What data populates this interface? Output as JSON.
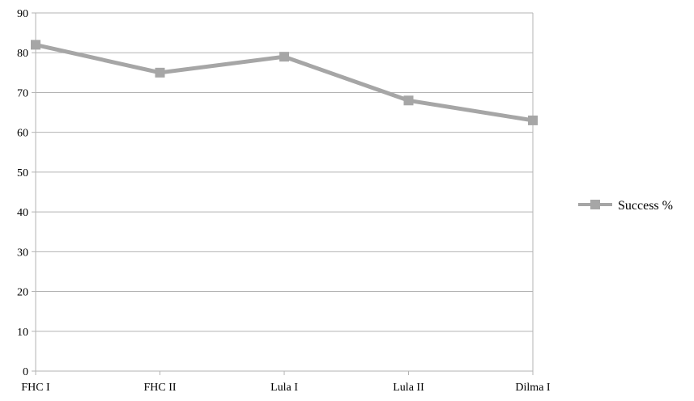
{
  "chart_data": {
    "type": "line",
    "categories": [
      "FHC I",
      "FHC II",
      "Lula I",
      "Lula II",
      "Dilma I"
    ],
    "series": [
      {
        "name": "Success %",
        "values": [
          82,
          75,
          79,
          68,
          63
        ],
        "color": "#a6a6a6",
        "marker": "square"
      }
    ],
    "ylim": [
      0,
      90
    ],
    "yticks": [
      0,
      10,
      20,
      30,
      40,
      50,
      60,
      70,
      80,
      90
    ],
    "grid": true,
    "grid_color": "#b3b3b3",
    "legend_position": "right"
  }
}
